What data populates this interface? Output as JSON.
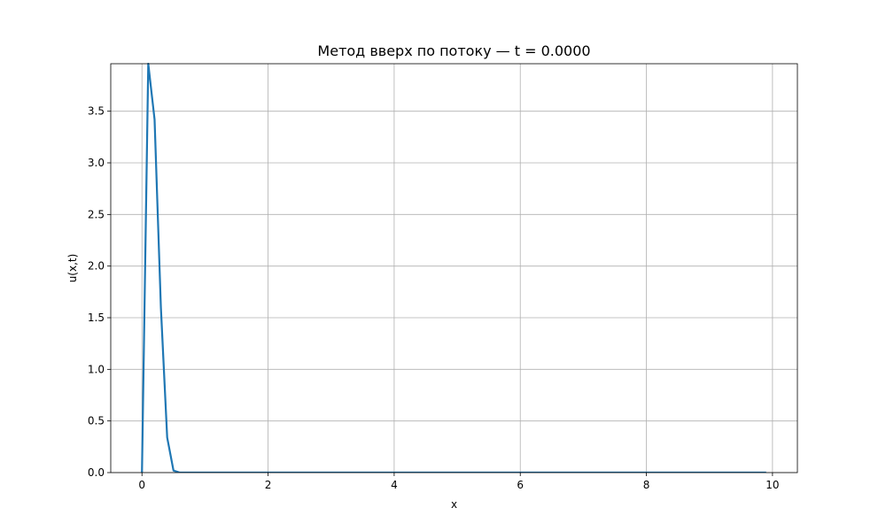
{
  "chart_data": {
    "type": "line",
    "title": "Метод вверх по потоку — t = 0.0000",
    "xlabel": "x",
    "ylabel": "u(x,t)",
    "xlim": [
      -0.495,
      10.395
    ],
    "ylim": [
      0,
      3.96
    ],
    "xticks": [
      0,
      2,
      4,
      6,
      8,
      10
    ],
    "xtick_labels": [
      "0",
      "2",
      "4",
      "6",
      "8",
      "10"
    ],
    "yticks": [
      0.0,
      0.5,
      1.0,
      1.5,
      2.0,
      2.5,
      3.0,
      3.5
    ],
    "ytick_labels": [
      "0.0",
      "0.5",
      "1.0",
      "1.5",
      "2.0",
      "2.5",
      "3.0",
      "3.5"
    ],
    "grid": true,
    "series": [
      {
        "color": "#1f77b4",
        "x": [
          0.0,
          0.1,
          0.2,
          0.3,
          0.4,
          0.5,
          0.6,
          0.7,
          0.8,
          1.0,
          2.0,
          3.0,
          4.0,
          5.0,
          6.0,
          7.0,
          8.0,
          9.0,
          9.9
        ],
        "y": [
          0.0,
          3.96,
          3.42,
          1.6,
          0.34,
          0.02,
          0.0,
          0.0,
          0.0,
          0.0,
          0.0,
          0.0,
          0.0,
          0.0,
          0.0,
          0.0,
          0.0,
          0.0,
          0.0
        ]
      }
    ]
  }
}
